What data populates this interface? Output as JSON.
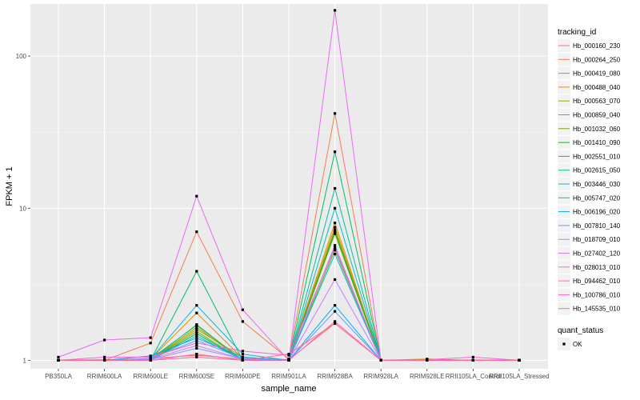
{
  "chart_data": {
    "type": "line",
    "xlabel": "sample_name",
    "ylabel": "FPKM + 1",
    "y_scale": "log10",
    "ylim": [
      0.88,
      220
    ],
    "y_ticks": [
      {
        "value": 1,
        "label": "1"
      },
      {
        "value": 10,
        "label": "10"
      },
      {
        "value": 100,
        "label": "100"
      }
    ],
    "grid": true,
    "legend_position": "right",
    "categories": [
      "PB350LA",
      "RRIM600LA",
      "RRIM600LE",
      "RRIM600SE",
      "RRIM600PE",
      "RRIM901LA",
      "RRIM928BA",
      "RRIM928LA",
      "RRIM928LE",
      "RRII105LA_Control",
      "RRII105LA_Stressed"
    ],
    "color_legend_title": "tracking_id",
    "shape_legend_title": "quant_status",
    "shape_legend_items": [
      {
        "label": "OK"
      }
    ],
    "series": [
      {
        "name": "Hb_000160_230",
        "color": "#F8766D",
        "values": [
          1.0,
          1.0,
          1.03,
          1.08,
          1.02,
          1.01,
          1.75,
          1.0,
          1.0,
          1.0,
          1.0
        ]
      },
      {
        "name": "Hb_000264_250",
        "color": "#F07F50",
        "values": [
          1.0,
          1.0,
          1.3,
          7.0,
          1.8,
          1.02,
          42.0,
          1.0,
          1.0,
          1.0,
          1.0
        ]
      },
      {
        "name": "Hb_000419_080",
        "color": "#E58700",
        "values": [
          1.0,
          1.01,
          1.02,
          2.05,
          1.03,
          1.01,
          8.0,
          1.0,
          1.02,
          1.0,
          1.0
        ]
      },
      {
        "name": "Hb_000488_040",
        "color": "#C99800",
        "values": [
          1.0,
          1.0,
          1.0,
          1.6,
          1.05,
          1.0,
          7.5,
          1.0,
          1.0,
          1.0,
          1.0
        ]
      },
      {
        "name": "Hb_000563_070",
        "color": "#A3A500",
        "values": [
          1.0,
          1.0,
          1.0,
          1.72,
          1.0,
          1.0,
          7.2,
          1.0,
          1.0,
          1.0,
          1.0
        ]
      },
      {
        "name": "Hb_000859_040",
        "color": "#8CAB00",
        "values": [
          1.0,
          1.0,
          1.0,
          1.65,
          1.0,
          1.0,
          6.8,
          1.0,
          1.0,
          1.0,
          1.0
        ]
      },
      {
        "name": "Hb_001032_060",
        "color": "#6BB100",
        "values": [
          1.0,
          1.0,
          1.0,
          1.55,
          1.0,
          1.0,
          5.3,
          1.0,
          1.0,
          1.0,
          1.0
        ]
      },
      {
        "name": "Hb_001410_090",
        "color": "#00BA38",
        "values": [
          1.0,
          1.0,
          1.0,
          1.5,
          1.0,
          1.0,
          7.0,
          1.0,
          1.0,
          1.0,
          1.0
        ]
      },
      {
        "name": "Hb_002551_010",
        "color": "#00BE67",
        "values": [
          1.0,
          1.0,
          1.0,
          3.85,
          1.0,
          1.0,
          23.5,
          1.0,
          1.0,
          1.0,
          1.0
        ]
      },
      {
        "name": "Hb_002615_050",
        "color": "#00C19A",
        "values": [
          1.0,
          1.0,
          1.02,
          1.7,
          1.0,
          1.0,
          13.5,
          1.0,
          1.0,
          1.0,
          1.0
        ]
      },
      {
        "name": "Hb_003446_030",
        "color": "#00BFC4",
        "values": [
          1.0,
          1.0,
          1.0,
          1.45,
          1.0,
          1.0,
          10.0,
          1.0,
          1.0,
          1.0,
          1.0
        ]
      },
      {
        "name": "Hb_005747_020",
        "color": "#00B8E7",
        "values": [
          1.0,
          1.0,
          1.02,
          2.3,
          1.1,
          1.0,
          5.0,
          1.0,
          1.0,
          1.0,
          1.0
        ]
      },
      {
        "name": "Hb_006196_020",
        "color": "#00A9FF",
        "values": [
          1.0,
          1.0,
          1.07,
          1.4,
          1.05,
          1.0,
          2.3,
          1.0,
          1.0,
          1.0,
          1.0
        ]
      },
      {
        "name": "Hb_007810_140",
        "color": "#619CFF",
        "values": [
          1.0,
          1.0,
          1.03,
          1.35,
          1.03,
          1.0,
          2.1,
          1.0,
          1.0,
          1.0,
          1.0
        ]
      },
      {
        "name": "Hb_018709_010",
        "color": "#9590FF",
        "values": [
          1.0,
          1.0,
          1.01,
          1.2,
          1.02,
          1.0,
          5.7,
          1.0,
          1.0,
          1.0,
          1.0
        ]
      },
      {
        "name": "Hb_027402_120",
        "color": "#C77CFF",
        "values": [
          1.0,
          1.0,
          1.02,
          1.25,
          1.02,
          1.0,
          3.4,
          1.0,
          1.0,
          1.0,
          1.0
        ]
      },
      {
        "name": "Hb_028013_010",
        "color": "#E76BF3",
        "values": [
          1.05,
          1.36,
          1.41,
          12.0,
          2.15,
          1.0,
          200.0,
          1.0,
          1.0,
          1.0,
          1.0
        ]
      },
      {
        "name": "Hb_094462_010",
        "color": "#FA62DB",
        "values": [
          1.0,
          1.05,
          1.05,
          1.3,
          1.15,
          1.08,
          5.5,
          1.0,
          1.01,
          1.05,
          1.0
        ]
      },
      {
        "name": "Hb_100786_010",
        "color": "#FF62BC",
        "values": [
          1.0,
          1.0,
          1.0,
          1.1,
          1.0,
          1.0,
          1.8,
          1.0,
          1.0,
          1.0,
          1.0
        ]
      },
      {
        "name": "Hb_145535_010",
        "color": "#FF6C91",
        "values": [
          1.0,
          1.0,
          1.0,
          1.05,
          1.0,
          1.1,
          1.75,
          1.0,
          1.0,
          1.0,
          1.0
        ]
      }
    ]
  }
}
